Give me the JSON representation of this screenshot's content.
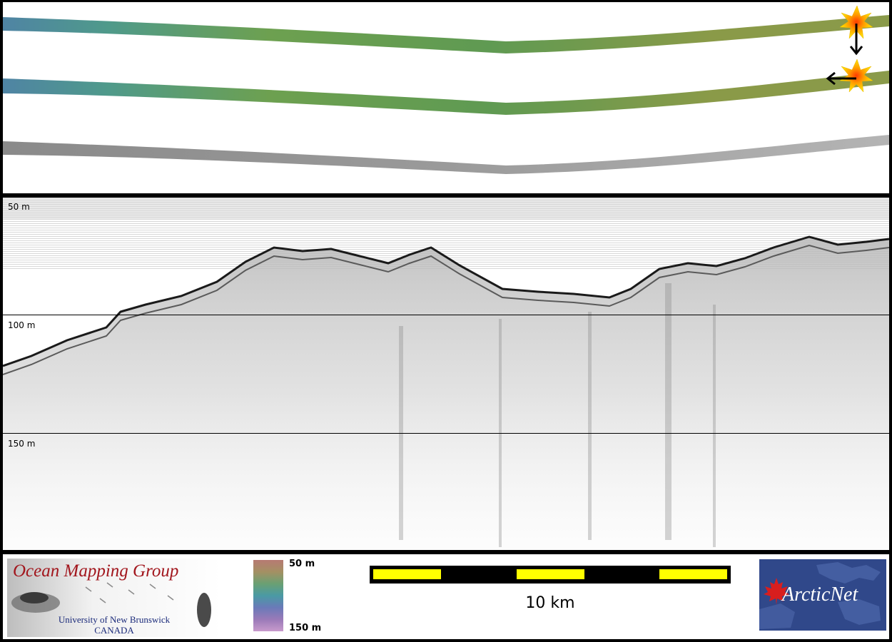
{
  "profile": {
    "depth_labels": [
      "50 m",
      "100 m",
      "150 m"
    ]
  },
  "colorbar": {
    "top_label": "50 m",
    "bottom_label": "150 m"
  },
  "scale": {
    "label": "10 km"
  },
  "logos": {
    "omg": {
      "title": "Ocean Mapping Group",
      "university": "University of New Brunswick",
      "country": "CANADA"
    },
    "arcticnet": {
      "text": "ArcticNet"
    }
  },
  "colors": {
    "scale_fill": "#ffff00",
    "omg_title": "#a2161d",
    "arcticnet_bg": "#30488a"
  },
  "icons": [
    "start-marker-star-icon",
    "direction-arrow-icon",
    "maple-leaf-icon"
  ]
}
